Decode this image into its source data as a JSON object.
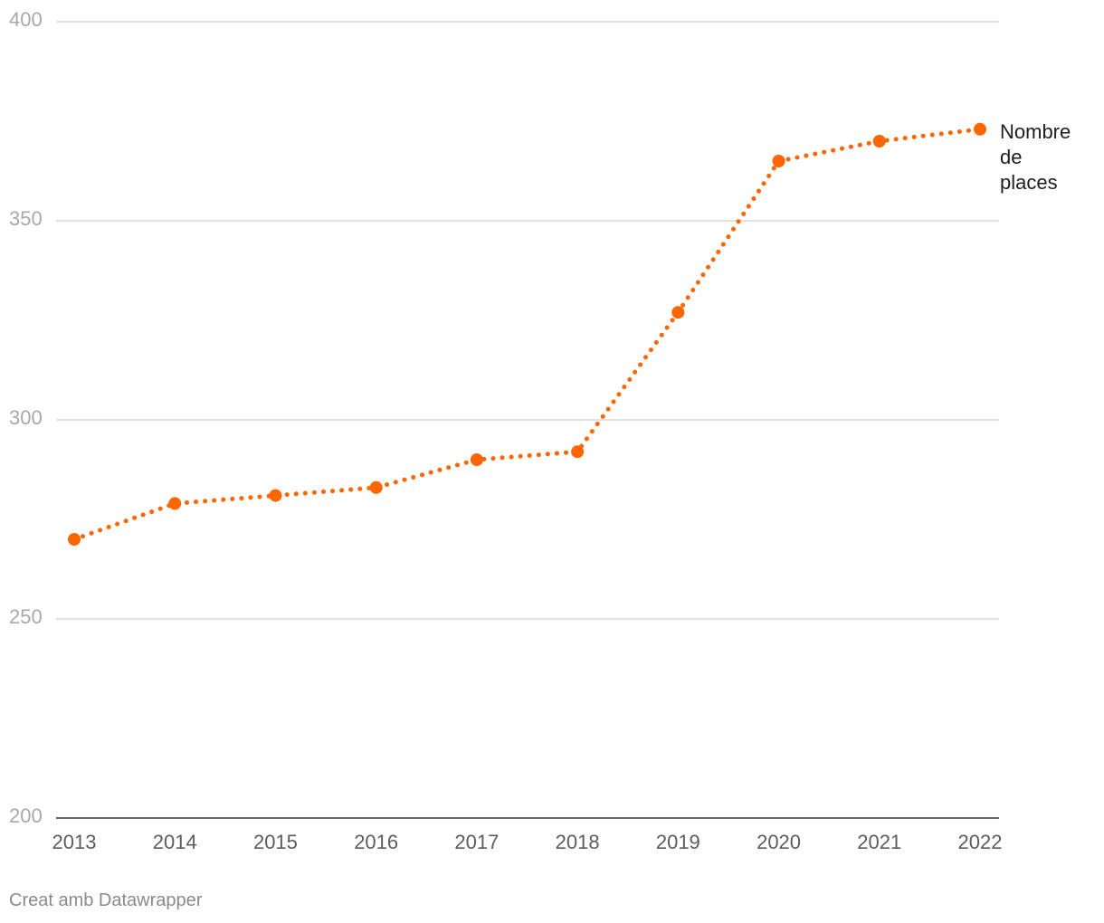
{
  "chart_data": {
    "type": "line",
    "x": [
      "2013",
      "2014",
      "2015",
      "2016",
      "2017",
      "2018",
      "2019",
      "2020",
      "2021",
      "2022"
    ],
    "series": [
      {
        "name": "Nombre de places",
        "values": [
          270,
          279,
          281,
          283,
          290,
          292,
          327,
          365,
          370,
          373
        ],
        "color": "#ff6600",
        "line_style": "dotted",
        "markers": true
      }
    ],
    "ylim": [
      200,
      400
    ],
    "y_ticks": [
      "200",
      "250",
      "300",
      "350",
      "400"
    ],
    "grid": true,
    "legend": "direct label at end of line"
  },
  "footer": {
    "credit": "Creat amb Datawrapper"
  }
}
